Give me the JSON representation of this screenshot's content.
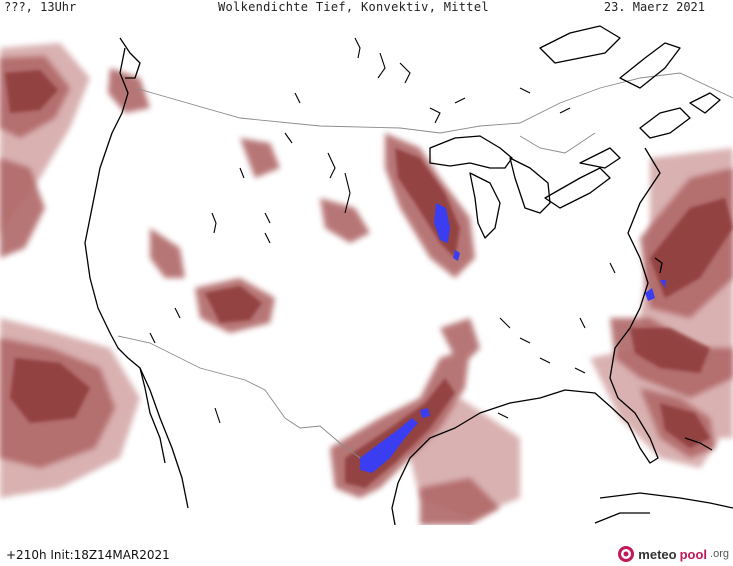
{
  "header": {
    "left": "???, 13Uhr",
    "center": "Wolkendichte  Tief, Konvektiv, Mittel",
    "right": "23. Maerz 2021"
  },
  "footer": {
    "left": "+210h  Init:18Z14MAR2021",
    "brand_main": "meteo",
    "brand_accent": "pool",
    "brand_suffix": ".org"
  },
  "colors": {
    "cloud_dark": "#8e3b3b",
    "cloud_mid": "#b06868",
    "cloud_light": "#d5a9a9",
    "convective": "#3a3df0",
    "coastline": "#000000",
    "border": "#8a8a8a",
    "brand_accent": "#c0185a"
  },
  "map": {
    "region": "USA"
  }
}
